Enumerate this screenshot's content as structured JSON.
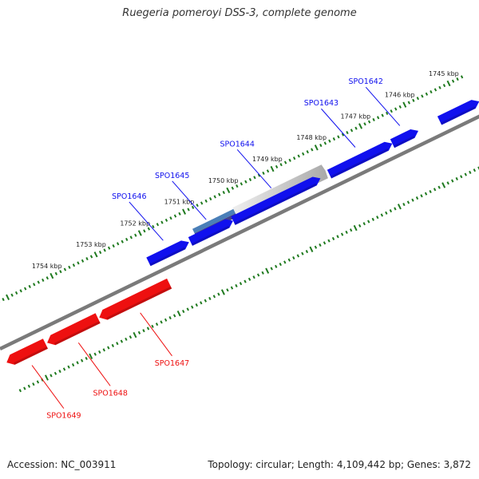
{
  "header": {
    "title": "Ruegeria pomeroyi DSS-3, complete genome"
  },
  "footer": {
    "accession": "Accession: NC_003911",
    "stats": "Topology: circular; Length: 4,109,442 bp; Genes: 3,872"
  },
  "colors": {
    "forward": "#1010ee",
    "reverse": "#ee1010",
    "backbone": "#7a7a7a",
    "ticks": "#1f7a1f",
    "selected": "#bdbdbd",
    "highlight": "#4a7fb8",
    "highlight_dark": "#44448a"
  },
  "diagram": {
    "units": "kbp",
    "backbone": {
      "from": 1755.6,
      "to": 1744.6
    },
    "forward_scale": {
      "ticks": [
        {
          "pos": 1745,
          "label": "1745 kbp"
        },
        {
          "pos": 1746,
          "label": "1746 kbp"
        },
        {
          "pos": 1747,
          "label": "1747 kbp"
        },
        {
          "pos": 1748,
          "label": "1748 kbp"
        },
        {
          "pos": 1749,
          "label": "1749 kbp"
        },
        {
          "pos": 1750,
          "label": "1750 kbp"
        },
        {
          "pos": 1751,
          "label": "1751 kbp"
        },
        {
          "pos": 1752,
          "label": "1752 kbp"
        },
        {
          "pos": 1753,
          "label": "1753 kbp"
        },
        {
          "pos": 1754,
          "label": "1754 kbp"
        }
      ]
    },
    "forward_genes": [
      {
        "name": "SPO1646",
        "start": 1752.1,
        "end": 1751.18,
        "label": "SPO1646"
      },
      {
        "name": "SPO1645",
        "start": 1751.15,
        "end": 1750.18,
        "label": "SPO1645"
      },
      {
        "name": "SPO1644",
        "start": 1750.18,
        "end": 1748.2,
        "label": "SPO1644"
      },
      {
        "name": "SPO1643",
        "start": 1748.0,
        "end": 1746.57,
        "label": "SPO1643"
      },
      {
        "name": "SPO1642",
        "start": 1746.57,
        "end": 1745.98,
        "label": "SPO1642"
      },
      {
        "name": "",
        "start": 1745.5,
        "end": 1744.6,
        "label": ""
      }
    ],
    "selection": [
      {
        "start": 1751.0,
        "end": 1750.07,
        "kind": "highlight"
      },
      {
        "start": 1750.07,
        "end": 1748.06,
        "kind": "selected"
      }
    ],
    "reverse_genes": [
      {
        "name": "SPO1649",
        "start": 1754.72,
        "end": 1755.6,
        "label": "SPO1649"
      },
      {
        "name": "SPO1648",
        "start": 1753.53,
        "end": 1754.68,
        "label": "SPO1648"
      },
      {
        "name": "SPO1647",
        "start": 1751.91,
        "end": 1753.5,
        "label": "SPO1647"
      }
    ]
  }
}
